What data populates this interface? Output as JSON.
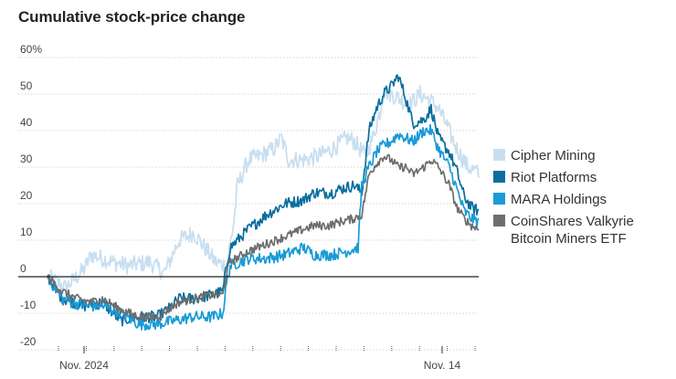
{
  "chart_data": {
    "type": "line",
    "title": "Cumulative stock-price change",
    "ylim": [
      -20,
      60
    ],
    "y_ticks": [
      {
        "value": 60,
        "label": "60%"
      },
      {
        "value": 50,
        "label": "50"
      },
      {
        "value": 40,
        "label": "40"
      },
      {
        "value": 30,
        "label": "30"
      },
      {
        "value": 20,
        "label": "20"
      },
      {
        "value": 10,
        "label": "10"
      },
      {
        "value": 0,
        "label": "0"
      },
      {
        "value": -10,
        "label": "-10"
      },
      {
        "value": -20,
        "label": "-20"
      }
    ],
    "x_labels": [
      {
        "label": "Nov. 2024",
        "index": 10
      },
      {
        "label": "Nov. 14",
        "index": 108
      }
    ],
    "n_points": 119,
    "colors": {
      "Cipher Mining": "#c9dff0",
      "Riot Platforms": "#0b6e9e",
      "MARA Holdings": "#1a9bd7",
      "CoinShares Valkyrie Bitcoin Miners ETF": "#6e6e6e",
      "zero_line": "#222222",
      "grid": "#d5d5d5"
    },
    "legend": [
      {
        "name": "Cipher Mining",
        "lines": [
          "Cipher Mining"
        ]
      },
      {
        "name": "Riot Platforms",
        "lines": [
          "Riot Platforms"
        ]
      },
      {
        "name": "MARA Holdings",
        "lines": [
          "MARA Holdings"
        ]
      },
      {
        "name": "CoinShares Valkyrie Bitcoin Miners ETF",
        "lines": [
          "CoinShares Valkyrie",
          "Bitcoin Miners ETF"
        ]
      }
    ],
    "series": [
      {
        "name": "Cipher Mining",
        "anchors": [
          [
            0,
            0
          ],
          [
            5,
            -3
          ],
          [
            10,
            2
          ],
          [
            12,
            6
          ],
          [
            18,
            4
          ],
          [
            22,
            3
          ],
          [
            28,
            4
          ],
          [
            32,
            1
          ],
          [
            36,
            10
          ],
          [
            40,
            12
          ],
          [
            43,
            8
          ],
          [
            46,
            4
          ],
          [
            49,
            3
          ],
          [
            51,
            15
          ],
          [
            52,
            25
          ],
          [
            55,
            32
          ],
          [
            58,
            33
          ],
          [
            62,
            35
          ],
          [
            64,
            38
          ],
          [
            66,
            32
          ],
          [
            70,
            32
          ],
          [
            74,
            33
          ],
          [
            78,
            35
          ],
          [
            82,
            38
          ],
          [
            84,
            37
          ],
          [
            87,
            33
          ],
          [
            89,
            38
          ],
          [
            91,
            45
          ],
          [
            92,
            51
          ],
          [
            94,
            50
          ],
          [
            96,
            49
          ],
          [
            99,
            47
          ],
          [
            102,
            50
          ],
          [
            105,
            48
          ],
          [
            107,
            46
          ],
          [
            109,
            42
          ],
          [
            112,
            35
          ],
          [
            115,
            30
          ],
          [
            117,
            29
          ],
          [
            118,
            28
          ]
        ]
      },
      {
        "name": "Riot Platforms",
        "anchors": [
          [
            0,
            0
          ],
          [
            4,
            -6
          ],
          [
            10,
            -8
          ],
          [
            15,
            -7
          ],
          [
            20,
            -12
          ],
          [
            25,
            -11
          ],
          [
            30,
            -11
          ],
          [
            33,
            -9
          ],
          [
            36,
            -6
          ],
          [
            40,
            -6
          ],
          [
            45,
            -5
          ],
          [
            48,
            -4
          ],
          [
            49,
            3
          ],
          [
            50,
            8
          ],
          [
            55,
            13
          ],
          [
            60,
            17
          ],
          [
            65,
            20
          ],
          [
            70,
            21
          ],
          [
            73,
            23
          ],
          [
            78,
            23
          ],
          [
            80,
            24
          ],
          [
            84,
            25
          ],
          [
            86,
            23
          ],
          [
            88,
            40
          ],
          [
            90,
            46
          ],
          [
            92,
            50
          ],
          [
            94,
            52
          ],
          [
            96,
            55
          ],
          [
            98,
            49
          ],
          [
            100,
            42
          ],
          [
            103,
            43
          ],
          [
            105,
            46
          ],
          [
            107,
            38
          ],
          [
            110,
            34
          ],
          [
            112,
            29
          ],
          [
            114,
            22
          ],
          [
            116,
            19
          ],
          [
            118,
            18
          ]
        ]
      },
      {
        "name": "MARA Holdings",
        "anchors": [
          [
            0,
            0
          ],
          [
            4,
            -6
          ],
          [
            10,
            -8
          ],
          [
            15,
            -8
          ],
          [
            20,
            -10
          ],
          [
            25,
            -13
          ],
          [
            30,
            -13
          ],
          [
            35,
            -12
          ],
          [
            40,
            -11
          ],
          [
            45,
            -11
          ],
          [
            48,
            -10
          ],
          [
            49,
            -2
          ],
          [
            50,
            3
          ],
          [
            55,
            5
          ],
          [
            60,
            5
          ],
          [
            65,
            6
          ],
          [
            70,
            8
          ],
          [
            73,
            6
          ],
          [
            78,
            6
          ],
          [
            82,
            7
          ],
          [
            85,
            8
          ],
          [
            86,
            25
          ],
          [
            88,
            30
          ],
          [
            90,
            34
          ],
          [
            92,
            36
          ],
          [
            94,
            37
          ],
          [
            96,
            39
          ],
          [
            98,
            38
          ],
          [
            100,
            37
          ],
          [
            103,
            40
          ],
          [
            105,
            40
          ],
          [
            107,
            35
          ],
          [
            110,
            30
          ],
          [
            112,
            24
          ],
          [
            114,
            18
          ],
          [
            116,
            16
          ],
          [
            118,
            15
          ]
        ]
      },
      {
        "name": "CoinShares Valkyrie Bitcoin Miners ETF",
        "anchors": [
          [
            0,
            0
          ],
          [
            4,
            -4
          ],
          [
            8,
            -6
          ],
          [
            12,
            -7
          ],
          [
            15,
            -6
          ],
          [
            20,
            -9
          ],
          [
            25,
            -11
          ],
          [
            30,
            -11
          ],
          [
            33,
            -9
          ],
          [
            36,
            -7
          ],
          [
            40,
            -6
          ],
          [
            45,
            -5
          ],
          [
            48,
            -5
          ],
          [
            49,
            1
          ],
          [
            50,
            4
          ],
          [
            55,
            7
          ],
          [
            60,
            9
          ],
          [
            65,
            11
          ],
          [
            70,
            13
          ],
          [
            73,
            14
          ],
          [
            77,
            14
          ],
          [
            80,
            15
          ],
          [
            84,
            16
          ],
          [
            86,
            17
          ],
          [
            88,
            28
          ],
          [
            90,
            31
          ],
          [
            92,
            33
          ],
          [
            94,
            32
          ],
          [
            96,
            30
          ],
          [
            98,
            30
          ],
          [
            100,
            28
          ],
          [
            103,
            30
          ],
          [
            105,
            32
          ],
          [
            107,
            30
          ],
          [
            110,
            25
          ],
          [
            112,
            19
          ],
          [
            114,
            16
          ],
          [
            116,
            14
          ],
          [
            118,
            13
          ]
        ]
      }
    ]
  }
}
